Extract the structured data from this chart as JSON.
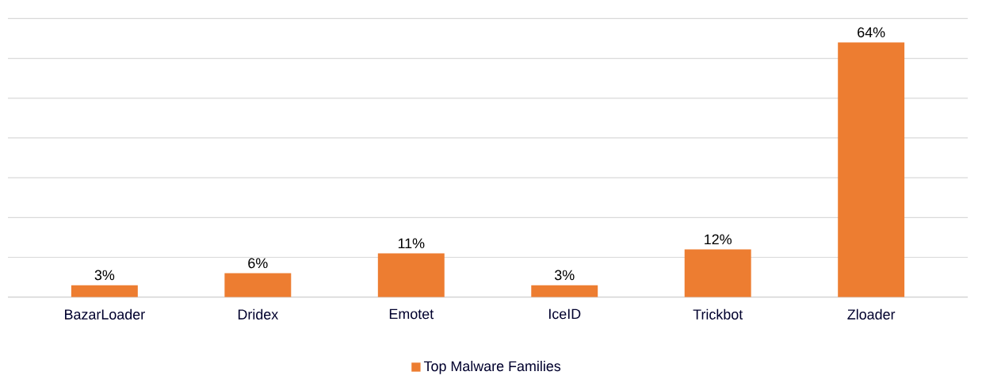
{
  "chart_data": {
    "type": "bar",
    "categories": [
      "BazarLoader",
      "Dridex",
      "Emotet",
      "IceID",
      "Trickbot",
      "Zloader"
    ],
    "series": [
      {
        "name": "Top Malware Families",
        "color": "#ed7d31",
        "values": [
          3,
          6,
          11,
          3,
          12,
          64
        ],
        "value_labels": [
          "3%",
          "6%",
          "11%",
          "3%",
          "12%",
          "64%"
        ]
      }
    ],
    "tick_labels": "x",
    "grid": "y",
    "legend": "bottom"
  }
}
